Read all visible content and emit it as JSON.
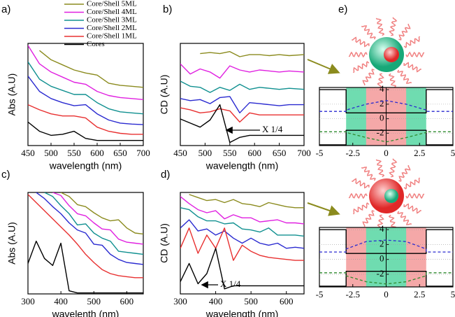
{
  "chart_data": [
    {
      "type": "line",
      "label": "a)",
      "x_label": "wavelength (nm)",
      "y_label": "Abs (A.U)",
      "xlim": [
        450,
        700
      ],
      "xticks": [
        450,
        500,
        550,
        600,
        650,
        700
      ],
      "ylim": [
        0,
        10
      ],
      "x": [
        450,
        475,
        500,
        525,
        550,
        575,
        600,
        625,
        650,
        675,
        700
      ],
      "series": [
        {
          "name": "Core/Shell 5ML",
          "color": "#8b8b1e",
          "values": [
            null,
            9.3,
            8.4,
            7.9,
            7.4,
            7.1,
            6.9,
            6.1,
            5.9,
            5.8,
            5.7
          ]
        },
        {
          "name": "Core/Shell 4ML",
          "color": "#e020e0",
          "values": [
            9.8,
            8.0,
            7.2,
            6.7,
            6.2,
            6.0,
            5.3,
            4.9,
            4.7,
            4.6,
            4.5
          ]
        },
        {
          "name": "Core/Shell 3ML",
          "color": "#109090",
          "values": [
            8.2,
            6.5,
            5.8,
            5.4,
            5.0,
            5.0,
            4.2,
            3.6,
            3.3,
            3.2,
            3.1
          ]
        },
        {
          "name": "Core/Shell 2ML",
          "color": "#2a2ad0",
          "values": [
            6.8,
            5.3,
            4.6,
            4.2,
            3.9,
            4.0,
            3.1,
            2.5,
            2.2,
            2.1,
            2.05
          ]
        },
        {
          "name": "Core/Shell 1ML",
          "color": "#e83030",
          "values": [
            4.0,
            3.5,
            3.1,
            2.9,
            2.9,
            2.7,
            1.8,
            1.4,
            1.2,
            1.1,
            1.1
          ]
        },
        {
          "name": "Cores",
          "color": "#000000",
          "values": [
            2.3,
            1.4,
            1.0,
            1.1,
            1.4,
            0.7,
            0.5,
            0.5,
            0.5,
            0.5,
            0.5
          ]
        }
      ]
    },
    {
      "type": "line",
      "label": "b)",
      "x_label": "wavelength (nm)",
      "y_label": "CD (A.U)",
      "annotation": "X 1/4",
      "xlim": [
        450,
        700
      ],
      "xticks": [
        450,
        500,
        550,
        600,
        650,
        700
      ],
      "ylim": [
        0,
        10
      ],
      "x": [
        450,
        470,
        490,
        510,
        530,
        550,
        570,
        590,
        610,
        630,
        650,
        670,
        700
      ],
      "series": [
        {
          "color": "#8b8b1e",
          "values": [
            null,
            null,
            9.0,
            9.1,
            9.0,
            9.2,
            8.7,
            8.9,
            8.9,
            8.8,
            8.9,
            8.8,
            8.9
          ]
        },
        {
          "color": "#e020e0",
          "values": [
            8.0,
            7.0,
            7.5,
            7.2,
            6.6,
            7.8,
            7.4,
            7.2,
            7.4,
            7.3,
            7.2,
            7.3,
            7.2
          ]
        },
        {
          "color": "#109090",
          "values": [
            6.3,
            5.8,
            5.7,
            5.2,
            5.7,
            5.4,
            6.0,
            5.5,
            5.7,
            5.6,
            5.5,
            5.6,
            5.5
          ]
        },
        {
          "color": "#2a2ad0",
          "values": [
            4.6,
            4.4,
            4.5,
            4.1,
            4.7,
            4.8,
            3.2,
            4.2,
            4.1,
            4.0,
            3.9,
            4.0,
            4.0
          ]
        },
        {
          "color": "#e83030",
          "values": [
            3.7,
            3.5,
            3.2,
            3.3,
            3.6,
            3.4,
            2.3,
            3.2,
            3.0,
            3.0,
            3.0,
            3.0,
            3.0
          ]
        },
        {
          "color": "#000000",
          "values": [
            2.6,
            2.2,
            1.8,
            2.5,
            4.0,
            0.3,
            0.8,
            1.0,
            1.0,
            1.0,
            1.0,
            1.0,
            1.0
          ]
        }
      ]
    },
    {
      "type": "line",
      "label": "c)",
      "x_label": "wavelenth (nm)",
      "y_label": "Abs (A.U)",
      "xlim": [
        300,
        650
      ],
      "xticks": [
        300,
        400,
        500,
        600
      ],
      "ylim": [
        0,
        10
      ],
      "x": [
        300,
        325,
        350,
        375,
        400,
        425,
        450,
        475,
        500,
        525,
        550,
        575,
        600,
        625,
        650
      ],
      "series": [
        {
          "color": "#8b8b1e",
          "values": [
            null,
            null,
            null,
            null,
            10,
            9.6,
            8.8,
            8.6,
            8.0,
            7.5,
            7.2,
            7.3,
            6.5,
            6.0,
            5.9
          ]
        },
        {
          "color": "#e020e0",
          "values": [
            null,
            null,
            null,
            10,
            9.7,
            8.7,
            7.9,
            7.7,
            7.0,
            6.4,
            6.3,
            5.4,
            5.1,
            5.0,
            4.9
          ]
        },
        {
          "color": "#109090",
          "values": [
            null,
            null,
            10,
            9.6,
            8.7,
            7.9,
            6.8,
            6.9,
            6.0,
            5.5,
            5.2,
            4.2,
            4.1,
            4.0,
            3.9
          ]
        },
        {
          "color": "#2a2ad0",
          "values": [
            null,
            10,
            9.4,
            8.6,
            7.9,
            7.0,
            6.3,
            6.0,
            4.9,
            4.8,
            3.9,
            3.4,
            3.1,
            3.0,
            2.9
          ]
        },
        {
          "color": "#e83030",
          "values": [
            9.8,
            9.0,
            8.2,
            7.4,
            6.6,
            5.8,
            4.9,
            3.9,
            3.1,
            2.4,
            2.0,
            1.8,
            1.7,
            1.6,
            1.6
          ]
        },
        {
          "color": "#000000",
          "values": [
            3.0,
            5.2,
            3.5,
            2.8,
            5.0,
            0.3,
            0.1,
            0.1,
            0.1,
            0.1,
            0.1,
            0.1,
            0.1,
            0.1,
            0.1
          ]
        }
      ]
    },
    {
      "type": "line",
      "label": "d)",
      "x_label": "wavelength (nm)",
      "y_label": "CD (A.U)",
      "annotation": "X 1/4",
      "xlim": [
        300,
        650
      ],
      "xticks": [
        300,
        400,
        500,
        600
      ],
      "ylim": [
        0,
        10
      ],
      "x": [
        300,
        325,
        350,
        375,
        400,
        425,
        450,
        475,
        500,
        525,
        550,
        575,
        600,
        625,
        650
      ],
      "series": [
        {
          "color": "#8b8b1e",
          "values": [
            null,
            9.8,
            9.5,
            9.2,
            9.3,
            9.0,
            9.3,
            8.9,
            8.8,
            8.6,
            9.0,
            8.8,
            8.6,
            8.5,
            8.5
          ]
        },
        {
          "color": "#e020e0",
          "values": [
            9.6,
            8.9,
            8.3,
            8.0,
            8.2,
            7.4,
            7.8,
            7.5,
            7.5,
            7.1,
            7.2,
            7.3,
            7.0,
            7.0,
            6.9
          ]
        },
        {
          "color": "#109090",
          "values": [
            8.5,
            8.3,
            7.6,
            7.2,
            7.2,
            6.9,
            7.0,
            6.4,
            6.3,
            6.1,
            6.5,
            5.8,
            5.8,
            5.8,
            5.7
          ]
        },
        {
          "color": "#2a2ad0",
          "values": [
            6.5,
            7.3,
            6.2,
            6.4,
            5.8,
            6.2,
            5.5,
            5.0,
            5.5,
            5.0,
            4.8,
            5.0,
            4.5,
            4.6,
            4.5
          ]
        },
        {
          "color": "#e83030",
          "values": [
            4.5,
            6.5,
            4.0,
            5.8,
            4.5,
            6.5,
            3.3,
            4.8,
            4.2,
            3.8,
            3.6,
            3.5,
            3.4,
            3.3,
            3.3
          ]
        },
        {
          "color": "#000000",
          "values": [
            1.2,
            3.0,
            1.0,
            2.0,
            4.5,
            0.5,
            0.8,
            0.8,
            0.8,
            0.8,
            0.8,
            0.8,
            0.8,
            0.8,
            0.8
          ]
        }
      ]
    },
    {
      "type": "band",
      "label": "e)",
      "xlim": [
        -5,
        5
      ],
      "xticks": [
        -5,
        -2.5,
        0,
        2.5,
        5
      ],
      "ylim": [
        -3.7,
        4.3
      ],
      "yticks": [
        4,
        2,
        0,
        -2
      ],
      "regions": [
        {
          "x": [
            -3,
            3
          ],
          "color": "#6fdcb0"
        },
        {
          "x": [
            -1.5,
            1.5
          ],
          "color": "#f5a8a8"
        }
      ],
      "x": [
        -5,
        -3,
        -3,
        -1.5,
        0,
        1.5,
        3,
        3,
        5
      ],
      "series": [
        {
          "color": "#000000",
          "values": [
            4.0,
            4.0,
            0.8,
            0.8,
            0.8,
            0.8,
            0.8,
            4.0,
            4.0
          ]
        },
        {
          "color": "#000000",
          "values": [
            -3.6,
            -3.6,
            -1.6,
            -1.6,
            -1.6,
            -1.6,
            -1.6,
            -3.6,
            -3.6
          ]
        },
        {
          "color": "#2a2ad0",
          "dashed": true,
          "values": [
            1.0,
            1.0,
            1.2,
            2.0,
            2.5,
            2.0,
            1.2,
            1.0,
            1.0
          ]
        },
        {
          "color": "#2e8b2e",
          "dashed": true,
          "values": [
            -1.8,
            -1.8,
            -1.9,
            -2.6,
            -3.2,
            -2.6,
            -1.9,
            -1.8,
            -1.8
          ]
        }
      ]
    },
    {
      "type": "band",
      "xlim": [
        -5,
        5
      ],
      "xticks": [
        -5,
        -2.5,
        0,
        2.5,
        5
      ],
      "ylim": [
        -3.7,
        4.3
      ],
      "yticks": [
        4,
        2,
        0,
        -2
      ],
      "regions": [
        {
          "x": [
            -3,
            3
          ],
          "color": "#f5a8a8"
        },
        {
          "x": [
            -1.5,
            1.5
          ],
          "color": "#6fdcb0"
        }
      ],
      "x": [
        -5,
        -3,
        -3,
        -1.5,
        0,
        1.5,
        3,
        3,
        5
      ],
      "series": [
        {
          "color": "#000000",
          "values": [
            4.0,
            4.0,
            0.8,
            0.8,
            0.8,
            0.8,
            0.8,
            4.0,
            4.0
          ]
        },
        {
          "color": "#000000",
          "values": [
            -3.6,
            -3.6,
            -1.6,
            -1.6,
            -1.6,
            -1.6,
            -1.6,
            -3.6,
            -3.6
          ]
        },
        {
          "color": "#2a2ad0",
          "dashed": true,
          "values": [
            1.0,
            1.0,
            1.4,
            2.4,
            2.6,
            2.4,
            1.4,
            1.0,
            1.0
          ]
        },
        {
          "color": "#2e8b2e",
          "dashed": true,
          "values": [
            -1.8,
            -1.8,
            -2.2,
            -3.0,
            -3.3,
            -3.0,
            -2.2,
            -1.8,
            -1.8
          ]
        }
      ]
    }
  ]
}
